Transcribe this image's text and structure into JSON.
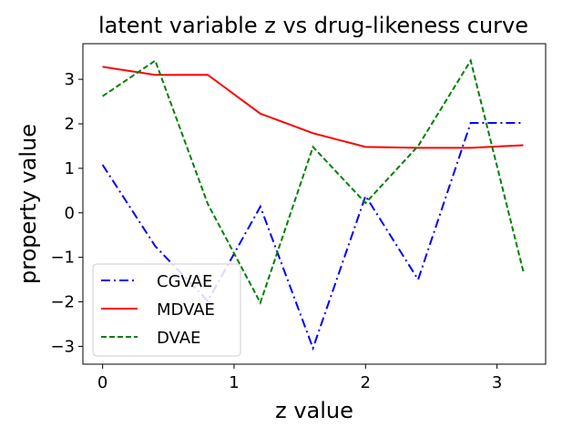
{
  "chart_data": {
    "type": "line",
    "title": "latent variable z vs drug-likeness curve",
    "xlabel": "z value",
    "ylabel": "property value",
    "xlim": [
      -0.15,
      3.37
    ],
    "ylim": [
      -3.4,
      3.8
    ],
    "xticks": [
      0,
      1,
      2,
      3
    ],
    "xtick_labels": [
      "0",
      "1",
      "2",
      "3"
    ],
    "yticks": [
      -3,
      -2,
      -1,
      0,
      1,
      2,
      3
    ],
    "ytick_labels": [
      "−3",
      "−2",
      "−1",
      "0",
      "1",
      "2",
      "3"
    ],
    "grid": false,
    "legend_position": "lower-left",
    "x": [
      0.0,
      0.4,
      0.8,
      1.2,
      1.6,
      2.0,
      2.4,
      2.8,
      3.2
    ],
    "series": [
      {
        "name": "CGVAE",
        "color": "#0000ff",
        "style": "dashdot",
        "values": [
          1.08,
          -0.75,
          -1.98,
          0.14,
          -3.04,
          0.38,
          -1.5,
          2.02,
          2.02
        ]
      },
      {
        "name": "MDVAE",
        "color": "#ff0000",
        "style": "solid",
        "values": [
          3.28,
          3.1,
          3.1,
          2.23,
          1.79,
          1.48,
          1.46,
          1.46,
          1.52
        ]
      },
      {
        "name": "DVAE",
        "color": "#008000",
        "style": "dashed",
        "values": [
          2.62,
          3.42,
          0.2,
          -2.02,
          1.48,
          0.22,
          1.5,
          3.42,
          -1.32
        ]
      }
    ]
  }
}
